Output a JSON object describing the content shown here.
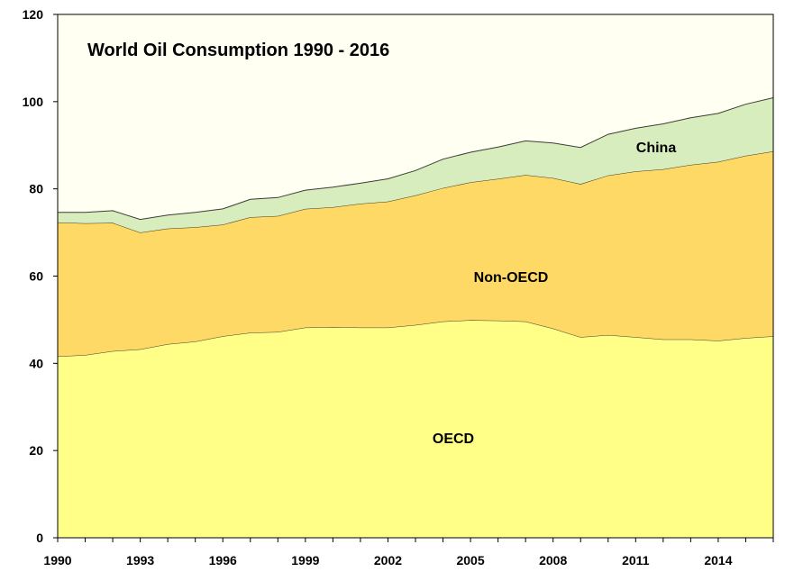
{
  "chart_data": {
    "type": "area",
    "stacked": true,
    "title": "World Oil Consumption 1990 - 2016",
    "xlabel": "",
    "ylabel": "",
    "xlim": [
      1990,
      2016
    ],
    "ylim": [
      0,
      120
    ],
    "grid": false,
    "legend": "none",
    "x": [
      1990,
      1991,
      1992,
      1993,
      1994,
      1995,
      1996,
      1997,
      1998,
      1999,
      2000,
      2001,
      2002,
      2003,
      2004,
      2005,
      2006,
      2007,
      2008,
      2009,
      2010,
      2011,
      2012,
      2013,
      2014,
      2015,
      2016
    ],
    "x_ticks": [
      "1990",
      "1993",
      "1996",
      "1999",
      "2002",
      "2005",
      "2008",
      "2011",
      "2014"
    ],
    "y_ticks": [
      "0",
      "20",
      "40",
      "60",
      "80",
      "100",
      "120"
    ],
    "series": [
      {
        "name": "OECD",
        "color": "#FFFF88",
        "values": [
          41.6,
          41.9,
          42.8,
          43.2,
          44.4,
          45.0,
          46.2,
          47.0,
          47.2,
          48.2,
          48.3,
          48.2,
          48.2,
          48.8,
          49.6,
          49.9,
          49.8,
          49.6,
          48.0,
          46.0,
          46.5,
          46.0,
          45.5,
          45.5,
          45.2,
          45.8,
          46.2
        ]
      },
      {
        "name": "Non-OECD",
        "color": "#FFD966",
        "values": [
          30.7,
          30.2,
          29.4,
          26.8,
          26.5,
          26.2,
          25.6,
          26.5,
          26.6,
          27.2,
          27.5,
          28.4,
          28.9,
          29.7,
          30.6,
          31.6,
          32.5,
          33.6,
          34.5,
          35.1,
          36.6,
          38.0,
          39.0,
          40.0,
          41.0,
          41.8,
          42.4
        ]
      },
      {
        "name": "China",
        "color": "#D8EDBE",
        "values": [
          2.3,
          2.5,
          2.8,
          3.0,
          3.1,
          3.4,
          3.6,
          4.1,
          4.2,
          4.3,
          4.6,
          4.7,
          5.2,
          5.7,
          6.6,
          6.9,
          7.3,
          7.8,
          8.0,
          8.4,
          9.4,
          9.9,
          10.4,
          10.8,
          11.1,
          11.8,
          12.3
        ]
      }
    ],
    "colors": {
      "background": "#FFFFF2",
      "line": "#000000"
    }
  }
}
